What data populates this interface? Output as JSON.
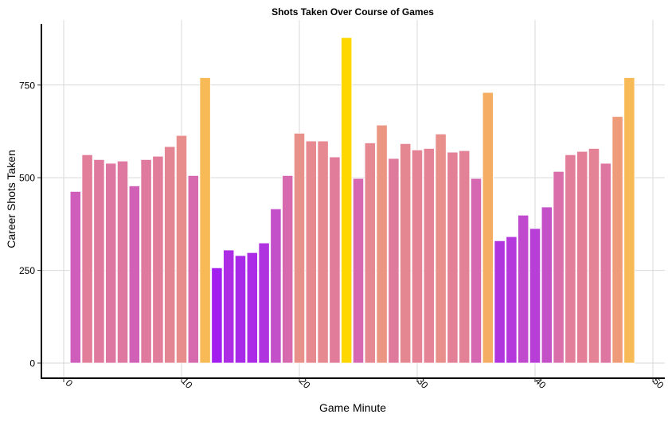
{
  "chart_data": {
    "type": "bar",
    "title": "Shots Taken Over Course of Games",
    "xlabel": "Game Minute",
    "ylabel": "Career Shots Taken",
    "x": [
      1,
      2,
      3,
      4,
      5,
      6,
      7,
      8,
      9,
      10,
      11,
      12,
      13,
      14,
      15,
      16,
      17,
      18,
      19,
      20,
      21,
      22,
      23,
      24,
      25,
      26,
      27,
      28,
      29,
      30,
      31,
      32,
      33,
      34,
      35,
      36,
      37,
      38,
      39,
      40,
      41,
      42,
      43,
      44,
      45,
      46,
      47,
      48
    ],
    "values": [
      463,
      562,
      549,
      539,
      545,
      478,
      549,
      558,
      584,
      614,
      506,
      770,
      257,
      305,
      290,
      298,
      324,
      416,
      506,
      620,
      599,
      599,
      556,
      878,
      498,
      594,
      642,
      552,
      592,
      575,
      579,
      618,
      569,
      573,
      498,
      730,
      330,
      341,
      399,
      363,
      421,
      517,
      562,
      571,
      579,
      539,
      665,
      770
    ],
    "xlim": [
      -1.5,
      50.5
    ],
    "ylim": [
      -40,
      910
    ],
    "xticks": [
      "0",
      "10",
      "20",
      "30",
      "40",
      "50"
    ],
    "yticks": [
      "0",
      "250",
      "500",
      "750"
    ],
    "grid": true,
    "legend": "none",
    "fill_low_color": "#a020f0",
    "fill_high_color": "#ffd700"
  }
}
